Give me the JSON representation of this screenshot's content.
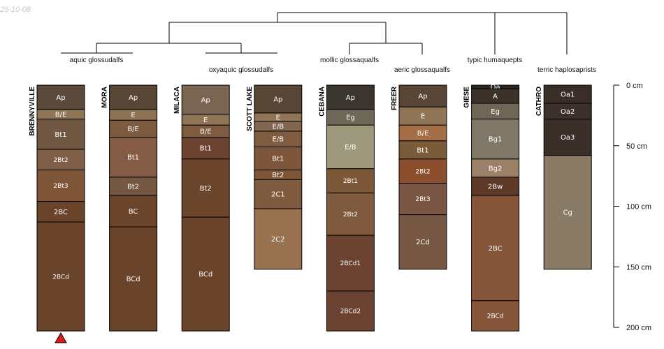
{
  "date_stamp": "25-10-08",
  "chart_data": {
    "type": "soil-profile-sketch",
    "depth_unit": "cm",
    "depth_axis": {
      "range": [
        0,
        200
      ],
      "ticks": [
        0,
        50,
        100,
        150,
        200
      ],
      "tick_labels": [
        "0 cm",
        "50 cm",
        "100 cm",
        "150 cm",
        "200 cm"
      ]
    },
    "marker": {
      "profile": "BRENNYVILLE",
      "symbol": "triangle",
      "color": "#e0191b"
    },
    "taxa": [
      {
        "label": "aquic glossudalfs",
        "profiles": [
          "BRENNYVILLE",
          "MORA"
        ]
      },
      {
        "label": "oxyaquic glossudalfs",
        "profiles": [
          "MILACA",
          "SCOTT LAKE"
        ]
      },
      {
        "label": "mollic glossaqualfs",
        "profiles": [
          "CEBANA"
        ]
      },
      {
        "label": "aeric glossaqualfs",
        "profiles": [
          "FREER"
        ]
      },
      {
        "label": "typic humaquepts",
        "profiles": [
          "GIESE"
        ]
      },
      {
        "label": "terric haplosaprists",
        "profiles": [
          "CATHRO"
        ]
      }
    ],
    "profiles": [
      {
        "name": "BRENNYVILLE",
        "horizons": [
          {
            "name": "Ap",
            "top": 0,
            "bottom": 20,
            "color": "#594a3c"
          },
          {
            "name": "B/E",
            "top": 20,
            "bottom": 28,
            "color": "#8f7556"
          },
          {
            "name": "Bt1",
            "top": 28,
            "bottom": 53,
            "color": "#6f5742"
          },
          {
            "name": "2Bt2",
            "top": 53,
            "bottom": 70,
            "color": "#7e5e47"
          },
          {
            "name": "2Bt3",
            "top": 70,
            "bottom": 96,
            "color": "#7f5537"
          },
          {
            "name": "2BC",
            "top": 96,
            "bottom": 113,
            "color": "#6a432b"
          },
          {
            "name": "2BCd",
            "top": 113,
            "bottom": 203,
            "color": "#6a432b"
          }
        ]
      },
      {
        "name": "MORA",
        "horizons": [
          {
            "name": "Ap",
            "top": 0,
            "bottom": 20,
            "color": "#574535"
          },
          {
            "name": "E",
            "top": 20,
            "bottom": 29,
            "color": "#8e7254"
          },
          {
            "name": "B/E",
            "top": 29,
            "bottom": 43,
            "color": "#7e5b3e"
          },
          {
            "name": "Bt1",
            "top": 43,
            "bottom": 76,
            "color": "#845c45"
          },
          {
            "name": "Bt2",
            "top": 76,
            "bottom": 91,
            "color": "#755843"
          },
          {
            "name": "BC",
            "top": 91,
            "bottom": 117,
            "color": "#6b452c"
          },
          {
            "name": "BCd",
            "top": 117,
            "bottom": 203,
            "color": "#6a432b"
          }
        ]
      },
      {
        "name": "MILACA",
        "horizons": [
          {
            "name": "Ap",
            "top": 0,
            "bottom": 24,
            "color": "#7a6552"
          },
          {
            "name": "E",
            "top": 24,
            "bottom": 33,
            "color": "#8f7556"
          },
          {
            "name": "B/E",
            "top": 33,
            "bottom": 43,
            "color": "#7f5b3f"
          },
          {
            "name": "Bt1",
            "top": 43,
            "bottom": 61,
            "color": "#6b4330"
          },
          {
            "name": "Bt2",
            "top": 61,
            "bottom": 109,
            "color": "#6b452c"
          },
          {
            "name": "BCd",
            "top": 109,
            "bottom": 203,
            "color": "#6a432b"
          }
        ]
      },
      {
        "name": "SCOTT LAKE",
        "horizons": [
          {
            "name": "Ap",
            "top": 0,
            "bottom": 23,
            "color": "#574535"
          },
          {
            "name": "E",
            "top": 23,
            "bottom": 30,
            "color": "#8f7556"
          },
          {
            "name": "E/B",
            "top": 30,
            "bottom": 38,
            "color": "#836650"
          },
          {
            "name": "E/B",
            "top": 38,
            "bottom": 51,
            "color": "#7f5b3f"
          },
          {
            "name": "Bt1",
            "top": 51,
            "bottom": 70,
            "color": "#7d563b"
          },
          {
            "name": "Bt2",
            "top": 70,
            "bottom": 78,
            "color": "#7f5537"
          },
          {
            "name": "2C1",
            "top": 78,
            "bottom": 102,
            "color": "#7e5a3f"
          },
          {
            "name": "2C2",
            "top": 102,
            "bottom": 152,
            "color": "#98724f"
          }
        ]
      },
      {
        "name": "CEBANA",
        "horizons": [
          {
            "name": "Ap",
            "top": 0,
            "bottom": 20,
            "color": "#3b3530"
          },
          {
            "name": "Eg",
            "top": 20,
            "bottom": 33,
            "color": "#6e6858"
          },
          {
            "name": "E/B",
            "top": 33,
            "bottom": 69,
            "color": "#9e987d"
          },
          {
            "name": "2Bt1",
            "top": 69,
            "bottom": 89,
            "color": "#7c5838"
          },
          {
            "name": "2Bt2",
            "top": 89,
            "bottom": 124,
            "color": "#7f5a3e"
          },
          {
            "name": "2BCd1",
            "top": 124,
            "bottom": 170,
            "color": "#6b4330"
          },
          {
            "name": "2BCd2",
            "top": 170,
            "bottom": 203,
            "color": "#6b4330"
          }
        ]
      },
      {
        "name": "FREER",
        "horizons": [
          {
            "name": "Ap",
            "top": 0,
            "bottom": 18,
            "color": "#574535"
          },
          {
            "name": "E",
            "top": 18,
            "bottom": 33,
            "color": "#8f7556"
          },
          {
            "name": "B/E",
            "top": 33,
            "bottom": 46,
            "color": "#a36d45"
          },
          {
            "name": "Bt1",
            "top": 46,
            "bottom": 61,
            "color": "#7a5c3b"
          },
          {
            "name": "2Bt2",
            "top": 61,
            "bottom": 81,
            "color": "#8b4f2d"
          },
          {
            "name": "2Bt3",
            "top": 81,
            "bottom": 107,
            "color": "#7a5645"
          },
          {
            "name": "2Cd",
            "top": 107,
            "bottom": 152,
            "color": "#775845"
          }
        ]
      },
      {
        "name": "GIESE",
        "horizons": [
          {
            "name": "Oa",
            "top": 0,
            "bottom": 3,
            "color": "#2d2620"
          },
          {
            "name": "A",
            "top": 3,
            "bottom": 15,
            "color": "#3b332a"
          },
          {
            "name": "Eg",
            "top": 15,
            "bottom": 28,
            "color": "#706655"
          },
          {
            "name": "Bg1",
            "top": 28,
            "bottom": 61,
            "color": "#7f7868"
          },
          {
            "name": "Bg2",
            "top": 61,
            "bottom": 76,
            "color": "#9b8067"
          },
          {
            "name": "2Bw",
            "top": 76,
            "bottom": 91,
            "color": "#5d3927"
          },
          {
            "name": "2BC",
            "top": 91,
            "bottom": 178,
            "color": "#845539"
          },
          {
            "name": "2BCd",
            "top": 178,
            "bottom": 203,
            "color": "#845539"
          }
        ]
      },
      {
        "name": "CATHRO",
        "horizons": [
          {
            "name": "Oa1",
            "top": 0,
            "bottom": 15,
            "color": "#3a2f28"
          },
          {
            "name": "Oa2",
            "top": 15,
            "bottom": 28,
            "color": "#3b302a"
          },
          {
            "name": "Oa3",
            "top": 28,
            "bottom": 58,
            "color": "#3a2f29"
          },
          {
            "name": "Cg",
            "top": 58,
            "bottom": 152,
            "color": "#897b66"
          }
        ]
      }
    ]
  }
}
